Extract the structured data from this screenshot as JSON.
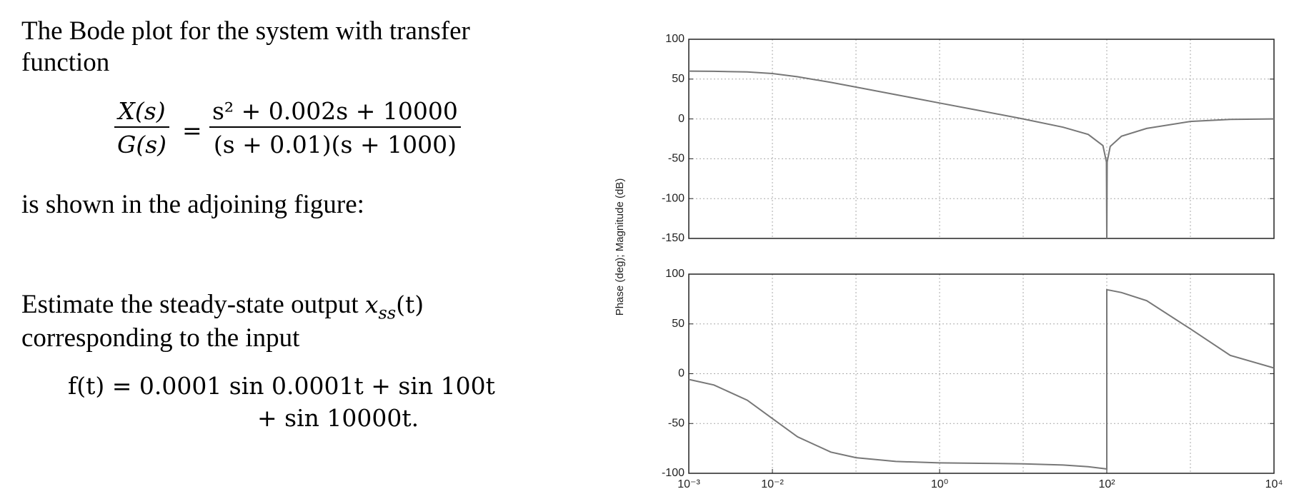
{
  "text": {
    "intro": [
      "The Bode plot for the system with transfer",
      "function"
    ],
    "lhs_num": "X(s)",
    "lhs_den": "G(s)",
    "eq": "=",
    "rhs_num": "s² + 0.002s + 10000",
    "rhs_den": "(s + 0.01)(s + 1000)",
    "shown": "is shown in the adjoining figure:",
    "estimate": "Estimate the steady-state output",
    "out_var": "x",
    "out_sub": "ss",
    "out_arg": "(t)",
    "corresponding": "corresponding to the input",
    "input_line1": "f(t) = 0.0001 sin 0.0001t + sin 100t",
    "input_line2": "+ sin 10000t."
  },
  "chart_data": [
    {
      "type": "line",
      "ylabel": "Phase (deg); Magnitude (dB)",
      "log_x": true,
      "grid": true,
      "color": "#777777",
      "x": [
        0.001,
        0.002,
        0.005,
        0.01,
        0.02,
        0.05,
        0.1,
        0.3,
        1,
        3,
        10,
        30,
        60,
        90,
        99,
        100,
        101,
        110,
        150,
        300,
        1000,
        3000,
        10000
      ],
      "values": [
        60,
        59.8,
        59,
        57,
        53,
        45.9,
        40,
        30.5,
        20,
        10.5,
        0,
        -10.4,
        -19.4,
        -33.5,
        -54,
        -150,
        -54,
        -34.5,
        -21.7,
        -11.9,
        -3.1,
        -0.5,
        0
      ],
      "xlim": [
        0.001,
        10000
      ],
      "ylim": [
        -150,
        100
      ],
      "yticks": [
        -150,
        -100,
        -50,
        0,
        50,
        100
      ]
    },
    {
      "type": "line",
      "log_x": true,
      "grid": true,
      "color": "#777777",
      "x": [
        0.001,
        0.002,
        0.005,
        0.01,
        0.02,
        0.05,
        0.1,
        0.3,
        1,
        3,
        10,
        30,
        60,
        90,
        99,
        100,
        100,
        110,
        150,
        300,
        1000,
        3000,
        10000
      ],
      "values": [
        -5.7,
        -11.3,
        -26.6,
        -45,
        -63.4,
        -78.7,
        -84.3,
        -88.1,
        -89.5,
        -90,
        -90.5,
        -91.7,
        -93.4,
        -95.1,
        -95.6,
        -95.7,
        84.3,
        83.7,
        81.5,
        73.3,
        45,
        18.4,
        5.7
      ],
      "xlim": [
        0.001,
        10000
      ],
      "ylim": [
        -100,
        100
      ],
      "yticks": [
        -100,
        -50,
        0,
        50,
        100
      ],
      "xticks": [
        {
          "value": 0.001,
          "label": "10⁻³"
        },
        {
          "value": 0.01,
          "label": "10⁻²"
        },
        {
          "value": 1,
          "label": "10⁰"
        },
        {
          "value": 100,
          "label": "10²"
        },
        {
          "value": 10000,
          "label": "10⁴"
        }
      ]
    }
  ]
}
